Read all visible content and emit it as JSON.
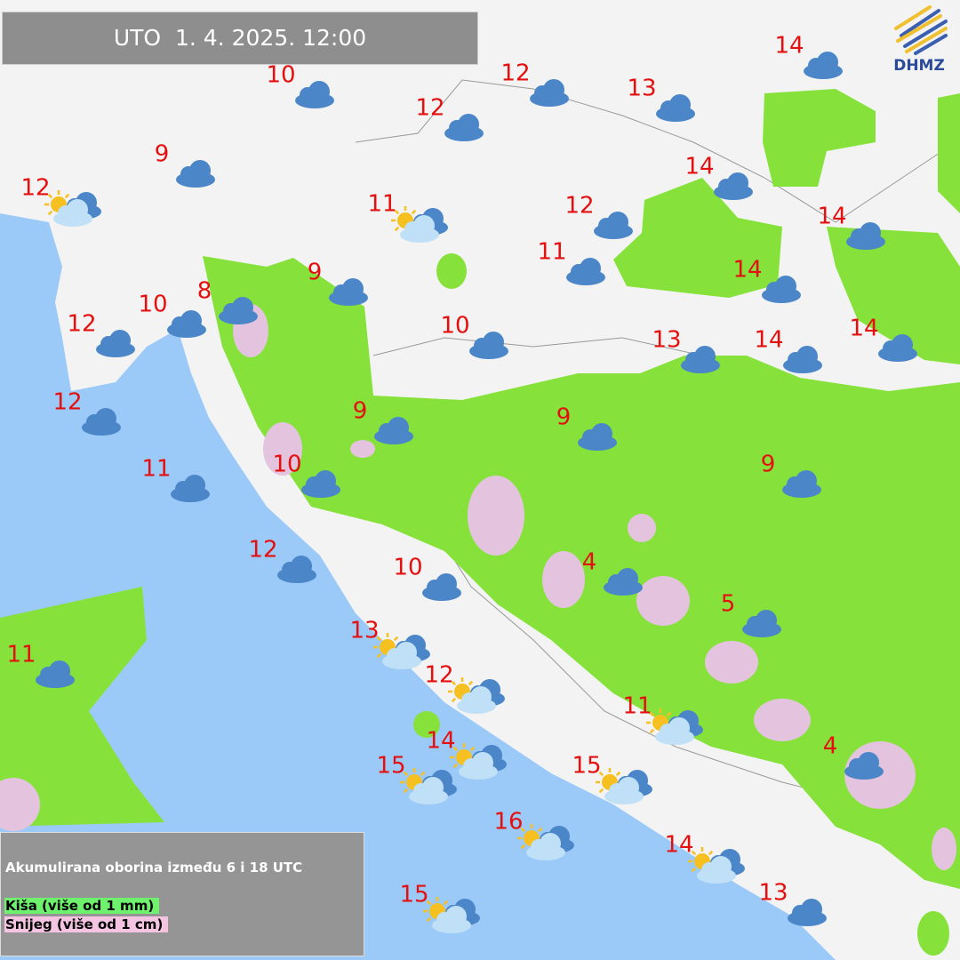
{
  "header": {
    "datetime": "UTO  1. 4. 2025. 12:00"
  },
  "logo": {
    "text": "DHMZ"
  },
  "legend": {
    "title": "Akumulirana oborina između 6 i 18 UTC",
    "rain": "Kiša (više od 1 mm)",
    "snow": "Snijeg (više od 1 cm)"
  },
  "colors": {
    "sea": "#9ccaf8",
    "land": "#f3f3f3",
    "rain": "#86e23a",
    "snow": "#e3c3de",
    "temperature": "#e41010",
    "cloud": "#4a86c8",
    "sun": "#f5c020"
  },
  "stations": [
    {
      "temp": "10",
      "icon": "cloud-icon"
    },
    {
      "temp": "12",
      "icon": "cloud-icon"
    },
    {
      "temp": "13",
      "icon": "cloud-icon"
    },
    {
      "temp": "14",
      "icon": "cloud-icon"
    },
    {
      "temp": "12",
      "icon": "cloud-icon"
    },
    {
      "temp": "9",
      "icon": "cloud-icon"
    },
    {
      "temp": "12",
      "icon": "partly-cloudy-icon"
    },
    {
      "temp": "11",
      "icon": "partly-cloudy-icon"
    },
    {
      "temp": "14",
      "icon": "cloud-icon"
    },
    {
      "temp": "12",
      "icon": "cloud-icon"
    },
    {
      "temp": "14",
      "icon": "cloud-icon"
    },
    {
      "temp": "11",
      "icon": "cloud-icon"
    },
    {
      "temp": "14",
      "icon": "cloud-icon"
    },
    {
      "temp": "9",
      "icon": "cloud-icon"
    },
    {
      "temp": "8",
      "icon": "cloud-icon"
    },
    {
      "temp": "10",
      "icon": "cloud-icon"
    },
    {
      "temp": "12",
      "icon": "cloud-icon"
    },
    {
      "temp": "10",
      "icon": "cloud-icon"
    },
    {
      "temp": "13",
      "icon": "cloud-icon"
    },
    {
      "temp": "14",
      "icon": "cloud-icon"
    },
    {
      "temp": "14",
      "icon": "cloud-icon"
    },
    {
      "temp": "12",
      "icon": "cloud-icon"
    },
    {
      "temp": "9",
      "icon": "cloud-icon"
    },
    {
      "temp": "9",
      "icon": "cloud-icon"
    },
    {
      "temp": "9",
      "icon": "cloud-icon"
    },
    {
      "temp": "11",
      "icon": "cloud-icon"
    },
    {
      "temp": "10",
      "icon": "cloud-icon"
    },
    {
      "temp": "12",
      "icon": "cloud-icon"
    },
    {
      "temp": "10",
      "icon": "cloud-icon"
    },
    {
      "temp": "4",
      "icon": "cloud-icon"
    },
    {
      "temp": "5",
      "icon": "cloud-icon"
    },
    {
      "temp": "13",
      "icon": "partly-cloudy-icon"
    },
    {
      "temp": "11",
      "icon": "cloud-icon"
    },
    {
      "temp": "12",
      "icon": "partly-cloudy-icon"
    },
    {
      "temp": "11",
      "icon": "partly-cloudy-icon"
    },
    {
      "temp": "4",
      "icon": "cloud-icon"
    },
    {
      "temp": "14",
      "icon": "partly-cloudy-icon"
    },
    {
      "temp": "15",
      "icon": "partly-cloudy-icon"
    },
    {
      "temp": "15",
      "icon": "partly-cloudy-icon"
    },
    {
      "temp": "16",
      "icon": "partly-cloudy-icon"
    },
    {
      "temp": "14",
      "icon": "partly-cloudy-icon"
    },
    {
      "temp": "13",
      "icon": "cloud-icon"
    },
    {
      "temp": "15",
      "icon": "partly-cloudy-icon"
    }
  ]
}
